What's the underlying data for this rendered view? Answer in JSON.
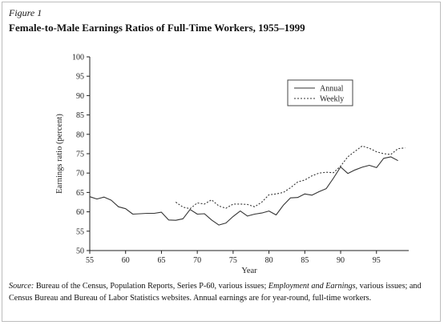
{
  "figure": {
    "label": "Figure 1",
    "title": "Female-to-Male Earnings Ratios of Full-Time Workers, 1955–1999"
  },
  "chart_data": {
    "type": "line",
    "xlabel": "Year",
    "ylabel": "Earnings ratio (percent)",
    "xlim": [
      55,
      99
    ],
    "ylim": [
      50,
      100
    ],
    "x_ticks": [
      55,
      60,
      65,
      70,
      75,
      80,
      85,
      90,
      95
    ],
    "y_ticks": [
      50,
      55,
      60,
      65,
      70,
      75,
      80,
      85,
      90,
      95,
      100
    ],
    "grid": false,
    "legend_position": "top-right",
    "series": [
      {
        "name": "Annual",
        "style": "solid",
        "x": [
          55,
          56,
          57,
          58,
          59,
          60,
          61,
          62,
          63,
          64,
          65,
          66,
          67,
          68,
          69,
          70,
          71,
          72,
          73,
          74,
          75,
          76,
          77,
          78,
          79,
          80,
          81,
          82,
          83,
          84,
          85,
          86,
          87,
          88,
          89,
          90,
          91,
          92,
          93,
          94,
          95,
          96,
          97,
          98
        ],
        "values": [
          63.9,
          63.3,
          63.8,
          63.0,
          61.3,
          60.8,
          59.4,
          59.5,
          59.6,
          59.6,
          59.9,
          57.9,
          57.8,
          58.2,
          60.6,
          59.4,
          59.5,
          57.9,
          56.6,
          57.1,
          58.8,
          60.2,
          58.9,
          59.4,
          59.7,
          60.2,
          59.2,
          61.7,
          63.6,
          63.7,
          64.6,
          64.3,
          65.2,
          66.0,
          68.7,
          71.6,
          69.9,
          70.8,
          71.5,
          72.0,
          71.4,
          73.8,
          74.2,
          73.2
        ]
      },
      {
        "name": "Weekly",
        "style": "dotted",
        "x": [
          67,
          68,
          69,
          70,
          71,
          72,
          73,
          74,
          75,
          76,
          77,
          78,
          79,
          80,
          81,
          82,
          83,
          84,
          85,
          86,
          87,
          88,
          89,
          90,
          91,
          92,
          93,
          94,
          95,
          96,
          97,
          98,
          99
        ],
        "values": [
          62.5,
          61.2,
          60.8,
          62.3,
          62.0,
          63.1,
          61.5,
          60.9,
          62.0,
          62.0,
          61.9,
          61.3,
          62.5,
          64.4,
          64.6,
          65.0,
          66.2,
          67.7,
          68.2,
          69.3,
          70.0,
          70.2,
          70.1,
          71.8,
          74.2,
          75.6,
          77.0,
          76.4,
          75.5,
          75.0,
          74.8,
          76.3,
          76.5
        ]
      }
    ]
  },
  "caption": {
    "source_label": "Source:",
    "part1": " Bureau of the Census, Population Reports, Series P-60, various issues; ",
    "italic_part": "Employment and Earnings,",
    "part2": " various issues; and Census Bureau and Bureau of Labor Statistics websites. Annual earnings are for year-round, full-time workers."
  }
}
